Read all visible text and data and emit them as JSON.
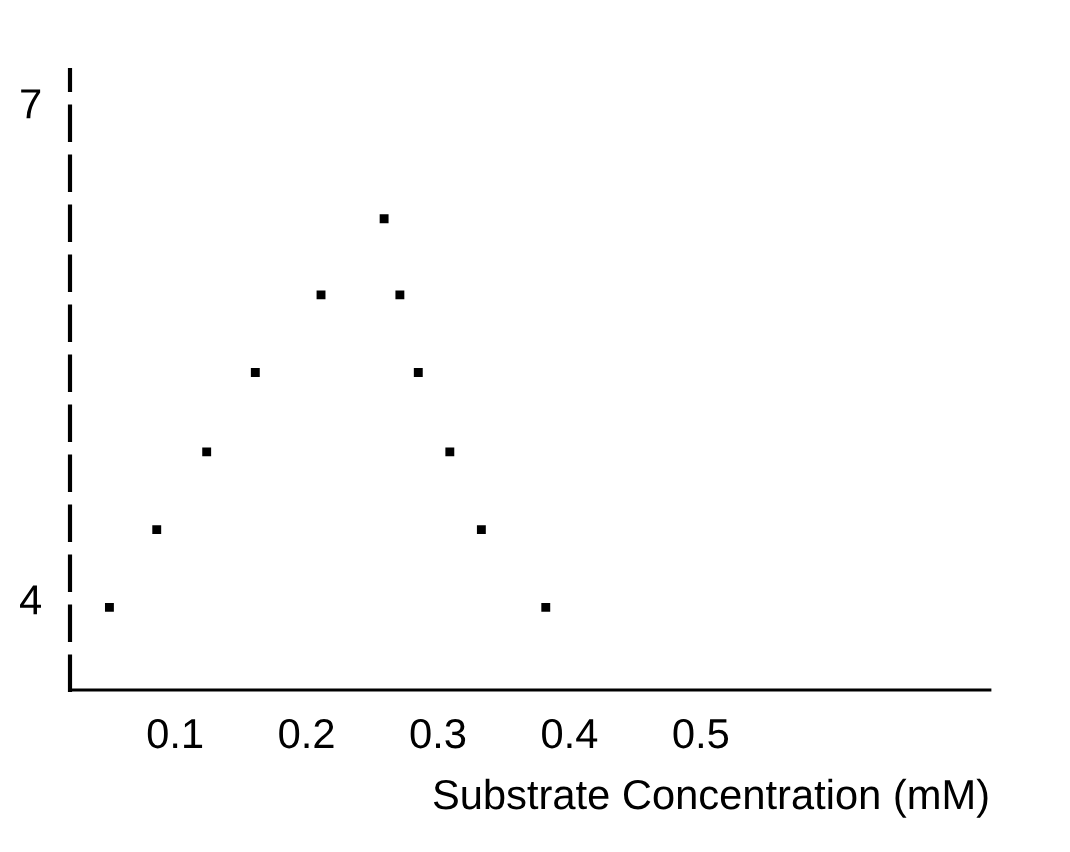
{
  "chart_data": {
    "type": "scatter",
    "xlabel": "Substrate Concentration (mM)",
    "x": [
      0.05,
      0.086,
      0.124,
      0.161,
      0.211,
      0.259,
      0.271,
      0.285,
      0.309,
      0.333,
      0.382
    ],
    "series": [
      {
        "color": "#000000",
        "values": [
          3.95,
          4.42,
          4.89,
          5.37,
          5.84,
          6.3,
          5.84,
          5.37,
          4.89,
          4.42,
          3.95
        ]
      }
    ],
    "xlim": [
      0.02,
      0.72
    ],
    "ylim": [
      3.45,
      7.2
    ],
    "xticks": [
      0.1,
      0.2,
      0.3,
      0.4,
      0.5
    ],
    "yticks": [
      4,
      7
    ],
    "marker": "square",
    "grid": false,
    "legend": false
  }
}
